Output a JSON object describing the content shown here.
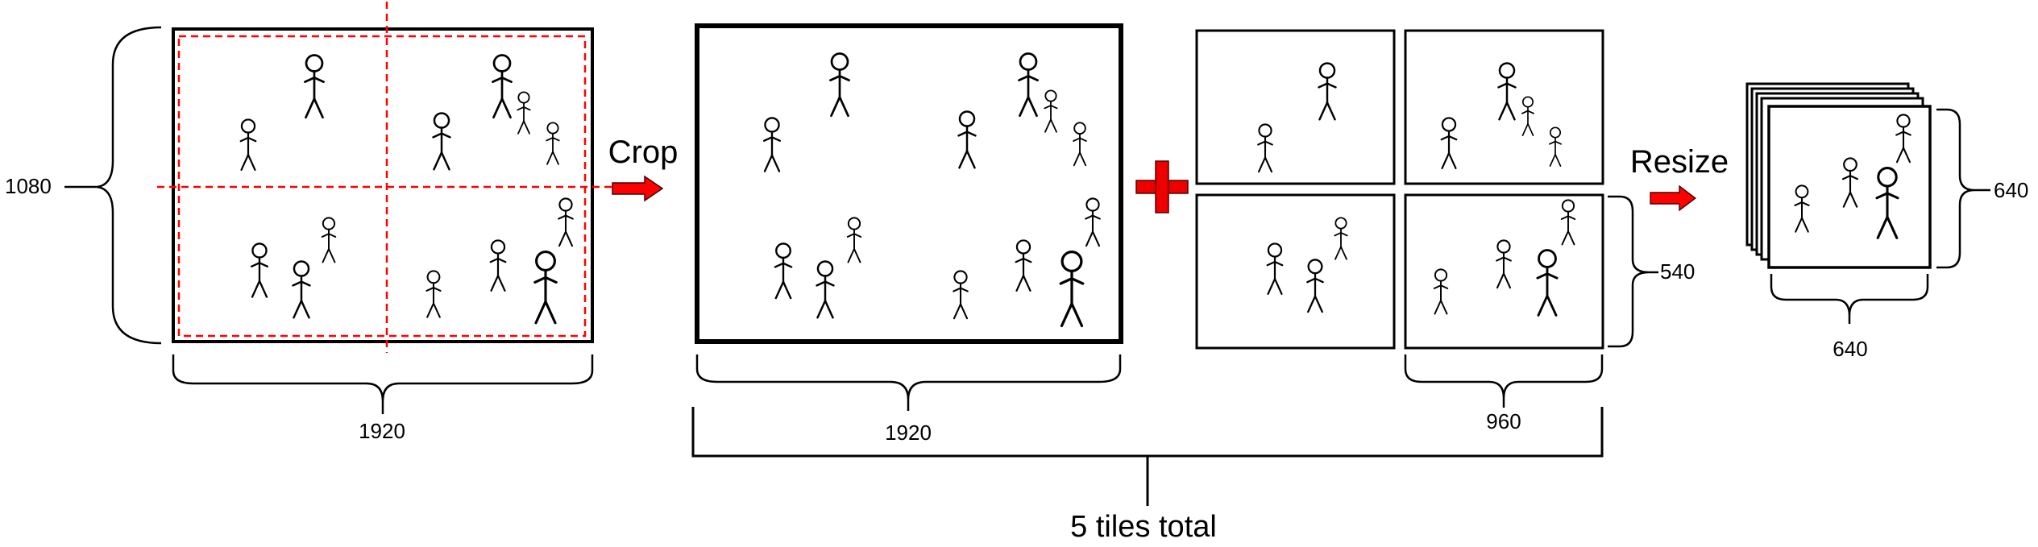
{
  "labels": {
    "height_1080": "1080",
    "width_1920_original": "1920",
    "crop": "Crop",
    "width_1920_crop": "1920",
    "plus_symbol": "+",
    "width_960": "960",
    "height_540": "540",
    "total": "5 tiles total",
    "resize": "Resize",
    "width_640": "640",
    "height_640": "640"
  },
  "colors": {
    "outline": "#000000",
    "dashed_guides": "#ff0000",
    "arrow": "#ff0000",
    "plus": "#ee0000"
  },
  "icons": [
    "stick-figure-icon",
    "right-arrow-icon",
    "plus-icon",
    "brace-icon"
  ]
}
